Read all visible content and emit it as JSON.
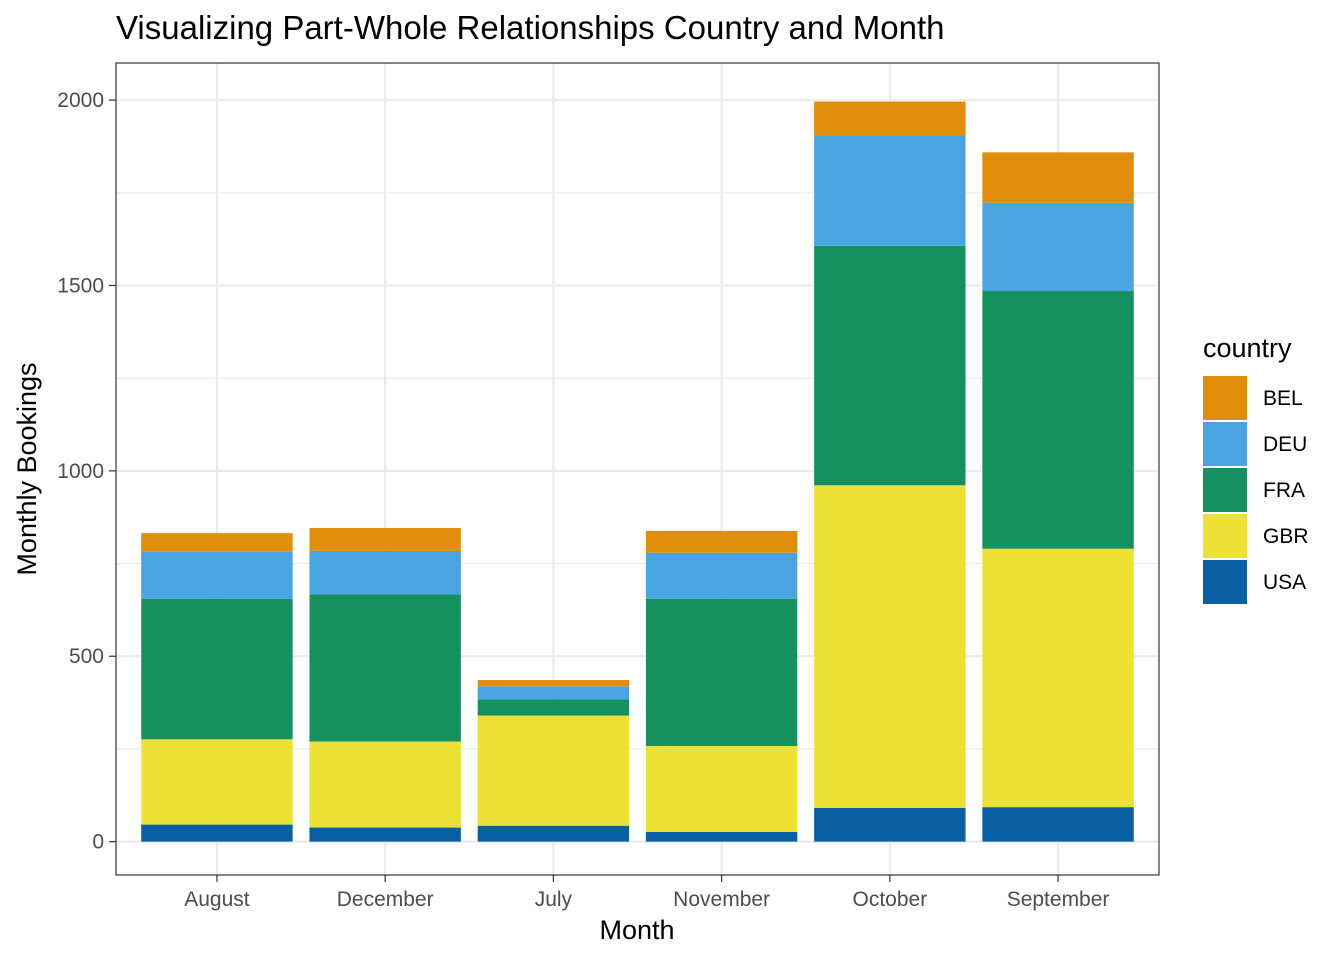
{
  "chart_data": {
    "type": "bar",
    "stacked": true,
    "title": "Visualizing Part-Whole Relationships Country and Month",
    "xlabel": "Month",
    "ylabel": "Monthly Bookings",
    "ylim": [
      -90,
      2100
    ],
    "yticks": [
      0,
      500,
      1000,
      1500,
      2000
    ],
    "grid": true,
    "legend_title": "country",
    "legend_position": "right",
    "categories": [
      "August",
      "December",
      "July",
      "November",
      "October",
      "September"
    ],
    "stack_order_bottom_to_top": [
      "USA",
      "GBR",
      "FRA",
      "DEU",
      "BEL"
    ],
    "series": [
      {
        "name": "BEL",
        "color": "#E08E0B",
        "values": [
          50,
          62,
          17,
          59,
          93,
          136
        ]
      },
      {
        "name": "DEU",
        "color": "#4AA4E2",
        "values": [
          127,
          117,
          35,
          124,
          296,
          238
        ]
      },
      {
        "name": "FRA",
        "color": "#159161",
        "values": [
          379,
          397,
          44,
          397,
          646,
          695
        ]
      },
      {
        "name": "GBR",
        "color": "#ECE134",
        "values": [
          230,
          232,
          297,
          232,
          870,
          697
        ]
      },
      {
        "name": "USA",
        "color": "#0A5FA3",
        "values": [
          46,
          38,
          43,
          26,
          91,
          93
        ]
      }
    ]
  }
}
